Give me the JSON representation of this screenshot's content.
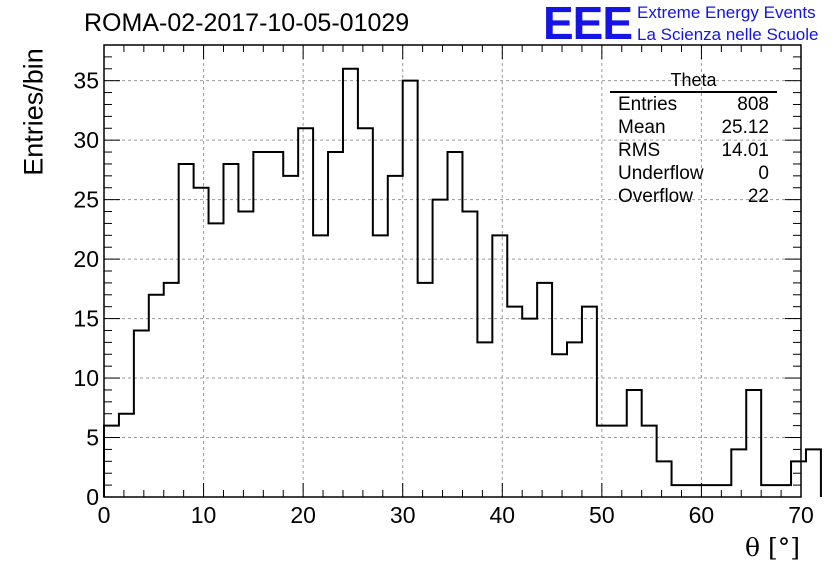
{
  "title": "ROMA-02-2017-10-05-01029",
  "logo": {
    "mark": "EEE",
    "line1": "Extreme Energy Events",
    "line2": "La Scienza nelle Scuole"
  },
  "stats_box": {
    "title": "Theta",
    "rows": [
      {
        "label": "Entries",
        "value": "808"
      },
      {
        "label": "Mean",
        "value": "25.12"
      },
      {
        "label": "RMS",
        "value": "14.01"
      },
      {
        "label": "Underflow",
        "value": "0"
      },
      {
        "label": "Overflow",
        "value": "22"
      }
    ]
  },
  "chart_data": {
    "type": "histogram",
    "title": "ROMA-02-2017-10-05-01029",
    "xlabel": "θ [°]",
    "ylabel": "Entries/bin",
    "xlim": [
      0,
      70
    ],
    "ylim": [
      0,
      38
    ],
    "x_ticks": [
      0,
      10,
      20,
      30,
      40,
      50,
      60,
      70
    ],
    "y_ticks": [
      0,
      5,
      10,
      15,
      20,
      25,
      30,
      35
    ],
    "grid": true,
    "legend": "top-right",
    "series_color": "#000000",
    "bin_width": 1.5,
    "bin_start": 0,
    "values": [
      6,
      7,
      14,
      17,
      18,
      28,
      26,
      23,
      28,
      24,
      29,
      29,
      27,
      31,
      22,
      29,
      36,
      31,
      22,
      27,
      35,
      18,
      25,
      29,
      24,
      13,
      22,
      16,
      15,
      18,
      12,
      13,
      16,
      6,
      6,
      9,
      6,
      3,
      1,
      1,
      1,
      1,
      4,
      9,
      1,
      1,
      3,
      4
    ]
  }
}
